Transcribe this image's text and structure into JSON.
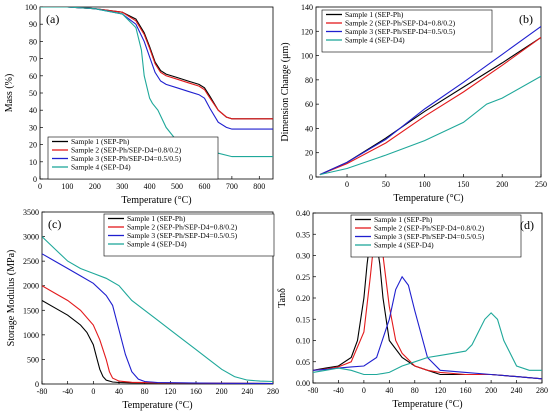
{
  "chart_data": [
    {
      "type": "line",
      "panel_label": "(a)",
      "xlabel": "Temperature (°C)",
      "ylabel": "Mass (%)",
      "xlim": [
        0,
        850
      ],
      "ylim": [
        0,
        100
      ],
      "xticks": [
        0,
        100,
        200,
        300,
        400,
        500,
        600,
        700,
        800
      ],
      "yticks": [
        0,
        10,
        20,
        30,
        40,
        50,
        60,
        70,
        80,
        90,
        100
      ],
      "legend_position": "bottom-left",
      "series": [
        {
          "name": "Sample 1 (SEP-Ph)",
          "color": "#000000",
          "x": [
            0,
            100,
            200,
            300,
            350,
            380,
            400,
            420,
            440,
            460,
            500,
            540,
            580,
            600,
            620,
            650,
            680,
            700,
            800,
            850
          ],
          "y": [
            100,
            100,
            99,
            97,
            93,
            85,
            77,
            68,
            63,
            61,
            59,
            57,
            55,
            53,
            48,
            40,
            36,
            35,
            35,
            35
          ]
        },
        {
          "name": "Sample 2 (SEP-Ph/SEP-D4=0.8/0.2)",
          "color": "#e31a1c",
          "x": [
            0,
            100,
            200,
            300,
            350,
            380,
            400,
            420,
            440,
            460,
            500,
            540,
            580,
            600,
            620,
            650,
            680,
            700,
            800,
            850
          ],
          "y": [
            100,
            100,
            99,
            97,
            92,
            84,
            76,
            67,
            62,
            60,
            58,
            56,
            54,
            52,
            47,
            40,
            36,
            35,
            35,
            35
          ]
        },
        {
          "name": "Sample 3 (SEP-Ph/SEP-D4=0.5/0.5)",
          "color": "#1f1fcf",
          "x": [
            0,
            100,
            200,
            300,
            350,
            380,
            400,
            420,
            440,
            460,
            500,
            540,
            580,
            600,
            620,
            650,
            680,
            700,
            800,
            850
          ],
          "y": [
            100,
            100,
            99,
            96,
            90,
            80,
            71,
            62,
            57,
            55,
            53,
            51,
            49,
            47,
            41,
            33,
            30,
            29,
            29,
            29
          ]
        },
        {
          "name": "Sample 4 (SEP-D4)",
          "color": "#1fa89a",
          "x": [
            0,
            100,
            200,
            300,
            350,
            370,
            380,
            400,
            410,
            430,
            460,
            500,
            550,
            600,
            650,
            700,
            800,
            850
          ],
          "y": [
            100,
            100,
            99,
            96,
            88,
            75,
            60,
            47,
            44,
            40,
            30,
            22,
            18,
            16,
            15,
            13,
            13,
            13
          ]
        }
      ]
    },
    {
      "type": "line",
      "panel_label": "(b)",
      "xlabel": "Temperature (°C)",
      "ylabel": "Dimension Change (μm)",
      "xlim": [
        -40,
        250
      ],
      "ylim": [
        0,
        140
      ],
      "xticks": [
        0,
        50,
        100,
        150,
        200,
        250
      ],
      "yticks": [
        0,
        20,
        40,
        60,
        80,
        100,
        120,
        140
      ],
      "legend_position": "top-left",
      "series": [
        {
          "name": "Sample 1 (SEP-Ph)",
          "color": "#000000",
          "x": [
            -35,
            0,
            50,
            100,
            150,
            200,
            250
          ],
          "y": [
            2,
            12,
            32,
            54,
            74,
            94,
            115
          ]
        },
        {
          "name": "Sample 2 (SEP-Ph/SEP-D4=0.8/0.2)",
          "color": "#e31a1c",
          "x": [
            -35,
            0,
            50,
            100,
            150,
            200,
            250
          ],
          "y": [
            2,
            11,
            28,
            50,
            70,
            92,
            115
          ]
        },
        {
          "name": "Sample 3 (SEP-Ph/SEP-D4=0.5/0.5)",
          "color": "#1f1fcf",
          "x": [
            -35,
            0,
            50,
            100,
            150,
            200,
            250
          ],
          "y": [
            2,
            12,
            31,
            56,
            78,
            101,
            124
          ]
        },
        {
          "name": "Sample 4 (SEP-D4)",
          "color": "#1fa89a",
          "x": [
            -35,
            0,
            50,
            100,
            150,
            180,
            200,
            250
          ],
          "y": [
            2,
            7,
            18,
            30,
            45,
            60,
            65,
            83
          ]
        }
      ]
    },
    {
      "type": "line",
      "panel_label": "(c)",
      "xlabel": "Temperature (°C)",
      "ylabel": "Storage Modulus (MPa)",
      "xlim": [
        -80,
        280
      ],
      "ylim": [
        0,
        3500
      ],
      "xticks": [
        -80,
        -40,
        0,
        40,
        80,
        120,
        160,
        200,
        240,
        280
      ],
      "yticks": [
        0,
        500,
        1000,
        1500,
        2000,
        2500,
        3000,
        3500
      ],
      "legend_position": "top-right",
      "series": [
        {
          "name": "Sample 1 (SEP-Ph)",
          "color": "#000000",
          "x": [
            -80,
            -60,
            -40,
            -20,
            -10,
            0,
            5,
            10,
            15,
            20,
            30,
            40,
            60,
            100,
            200,
            280
          ],
          "y": [
            1700,
            1550,
            1400,
            1200,
            1050,
            800,
            550,
            300,
            150,
            80,
            40,
            30,
            25,
            20,
            15,
            10
          ]
        },
        {
          "name": "Sample 2 (SEP-Ph/SEP-D4=0.8/0.2)",
          "color": "#e31a1c",
          "x": [
            -80,
            -60,
            -40,
            -20,
            0,
            10,
            20,
            25,
            30,
            40,
            60,
            100,
            200,
            280
          ],
          "y": [
            2000,
            1850,
            1700,
            1500,
            1200,
            900,
            500,
            250,
            120,
            60,
            35,
            25,
            15,
            10
          ]
        },
        {
          "name": "Sample 3 (SEP-Ph/SEP-D4=0.5/0.5)",
          "color": "#1f1fcf",
          "x": [
            -80,
            -60,
            -40,
            -20,
            0,
            20,
            30,
            40,
            50,
            60,
            70,
            80,
            100,
            200,
            280
          ],
          "y": [
            2650,
            2500,
            2350,
            2200,
            2050,
            1800,
            1600,
            1100,
            600,
            250,
            100,
            50,
            30,
            15,
            10
          ]
        },
        {
          "name": "Sample 4 (SEP-D4)",
          "color": "#1fa89a",
          "x": [
            -80,
            -60,
            -40,
            -20,
            0,
            20,
            40,
            60,
            80,
            100,
            120,
            140,
            160,
            180,
            200,
            220,
            240,
            260,
            280
          ],
          "y": [
            3000,
            2750,
            2500,
            2350,
            2250,
            2150,
            2000,
            1700,
            1500,
            1300,
            1100,
            900,
            700,
            500,
            300,
            150,
            80,
            60,
            50
          ]
        }
      ]
    },
    {
      "type": "line",
      "panel_label": "(d)",
      "xlabel": "Temperature (°C)",
      "ylabel": "Tanδ",
      "xlim": [
        -80,
        280
      ],
      "ylim": [
        0,
        0.4
      ],
      "xticks": [
        -80,
        -40,
        0,
        40,
        80,
        120,
        160,
        200,
        240,
        280
      ],
      "yticks": [
        0.0,
        0.05,
        0.1,
        0.15,
        0.2,
        0.25,
        0.3,
        0.35,
        0.4
      ],
      "ytick_labels": [
        "0.00",
        "0.05",
        "0.10",
        "0.15",
        "0.20",
        "0.25",
        "0.30",
        "0.35",
        "0.40"
      ],
      "legend_position": "top-right",
      "series": [
        {
          "name": "Sample 1 (SEP-Ph)",
          "color": "#000000",
          "x": [
            -80,
            -60,
            -40,
            -20,
            -10,
            0,
            5,
            10,
            15,
            20,
            25,
            30,
            40,
            60,
            80,
            100,
            120,
            160,
            200,
            240,
            280
          ],
          "y": [
            0.03,
            0.035,
            0.04,
            0.06,
            0.1,
            0.2,
            0.28,
            0.34,
            0.35,
            0.33,
            0.28,
            0.2,
            0.1,
            0.06,
            0.04,
            0.03,
            0.02,
            0.02,
            0.02,
            0.015,
            0.01
          ]
        },
        {
          "name": "Sample 2 (SEP-Ph/SEP-D4=0.8/0.2)",
          "color": "#e31a1c",
          "x": [
            -80,
            -60,
            -40,
            -20,
            0,
            10,
            15,
            20,
            25,
            30,
            40,
            50,
            60,
            80,
            100,
            120,
            160,
            200,
            240,
            280
          ],
          "y": [
            0.03,
            0.033,
            0.038,
            0.05,
            0.12,
            0.25,
            0.32,
            0.345,
            0.34,
            0.3,
            0.18,
            0.1,
            0.07,
            0.04,
            0.03,
            0.025,
            0.02,
            0.02,
            0.015,
            0.01
          ]
        },
        {
          "name": "Sample 3 (SEP-Ph/SEP-D4=0.5/0.5)",
          "color": "#1f1fcf",
          "x": [
            -80,
            -60,
            -40,
            -20,
            0,
            20,
            40,
            50,
            60,
            70,
            80,
            100,
            120,
            160,
            200,
            240,
            280
          ],
          "y": [
            0.03,
            0.032,
            0.035,
            0.038,
            0.04,
            0.06,
            0.15,
            0.22,
            0.25,
            0.23,
            0.17,
            0.06,
            0.03,
            0.025,
            0.02,
            0.015,
            0.01
          ]
        },
        {
          "name": "Sample 4 (SEP-D4)",
          "color": "#1fa89a",
          "x": [
            -80,
            -60,
            -40,
            -20,
            0,
            20,
            40,
            60,
            80,
            100,
            120,
            140,
            160,
            170,
            180,
            190,
            200,
            210,
            220,
            240,
            260,
            280
          ],
          "y": [
            0.025,
            0.03,
            0.035,
            0.03,
            0.02,
            0.02,
            0.025,
            0.04,
            0.05,
            0.06,
            0.065,
            0.07,
            0.075,
            0.09,
            0.12,
            0.15,
            0.165,
            0.15,
            0.1,
            0.04,
            0.03,
            0.03
          ]
        }
      ]
    }
  ]
}
